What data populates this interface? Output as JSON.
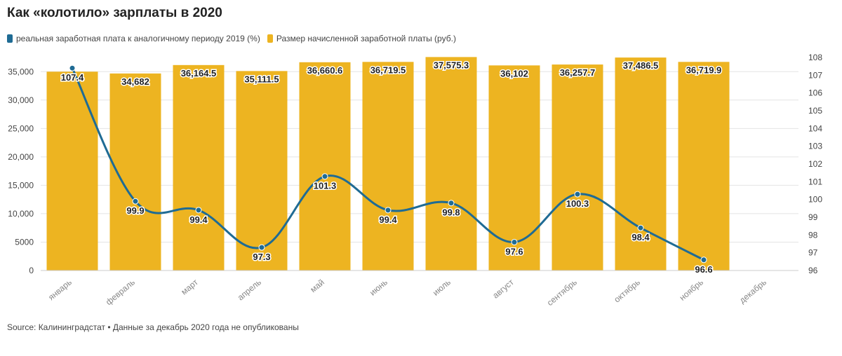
{
  "title": "Как «колотило» зарплаты в 2020",
  "legend": {
    "line_label": "реальная заработная плата к аналогичному периоду 2019 (%)",
    "bar_label": "Размер начисленной заработной платы (руб.)"
  },
  "source": "Source: Калининградстат • Данные за декабрь 2020 года не опубликованы",
  "colors": {
    "bar": "#EDB421",
    "line": "#1F6B94",
    "grid": "#e4e4e4",
    "text": "#444444"
  },
  "chart_data": {
    "type": "bar+line",
    "categories": [
      "январь",
      "февраль",
      "март",
      "апрель",
      "май",
      "июнь",
      "июль",
      "август",
      "сентябрь",
      "октябрь",
      "ноябрь",
      "декабрь"
    ],
    "bars": {
      "name": "Размер начисленной заработной платы (руб.)",
      "values": [
        35000,
        34682,
        36164.5,
        35111.5,
        36660.6,
        36719.5,
        37575.3,
        36102,
        36257.7,
        37486.5,
        36719.9,
        null
      ],
      "labels": [
        "",
        "34,682",
        "36,164.5",
        "35,111.5",
        "36,660.6",
        "36,719.5",
        "37,575.3",
        "36,102",
        "36,257.7",
        "37,486.5",
        "36,719.9",
        ""
      ]
    },
    "line": {
      "name": "реальная заработная плата к аналогичному периоду 2019 (%)",
      "values": [
        107.4,
        99.9,
        99.4,
        97.3,
        101.3,
        99.4,
        99.8,
        97.6,
        100.3,
        98.4,
        96.6,
        null
      ],
      "labels": [
        "107.4",
        "99.9",
        "99.4",
        "97.3",
        "101.3",
        "99.4",
        "99.8",
        "97.6",
        "100.3",
        "98.4",
        "96.6",
        ""
      ]
    },
    "y_left": {
      "min": 0,
      "max": 37500,
      "ticks": [
        0,
        5000,
        10000,
        15000,
        20000,
        25000,
        30000,
        35000
      ],
      "tick_labels": [
        "0",
        "5000",
        "10,000",
        "15,000",
        "20,000",
        "25,000",
        "30,000",
        "35,000"
      ]
    },
    "y_right": {
      "min": 96,
      "max": 108,
      "ticks": [
        96,
        97,
        98,
        99,
        100,
        101,
        102,
        103,
        104,
        105,
        106,
        107,
        108
      ]
    }
  }
}
